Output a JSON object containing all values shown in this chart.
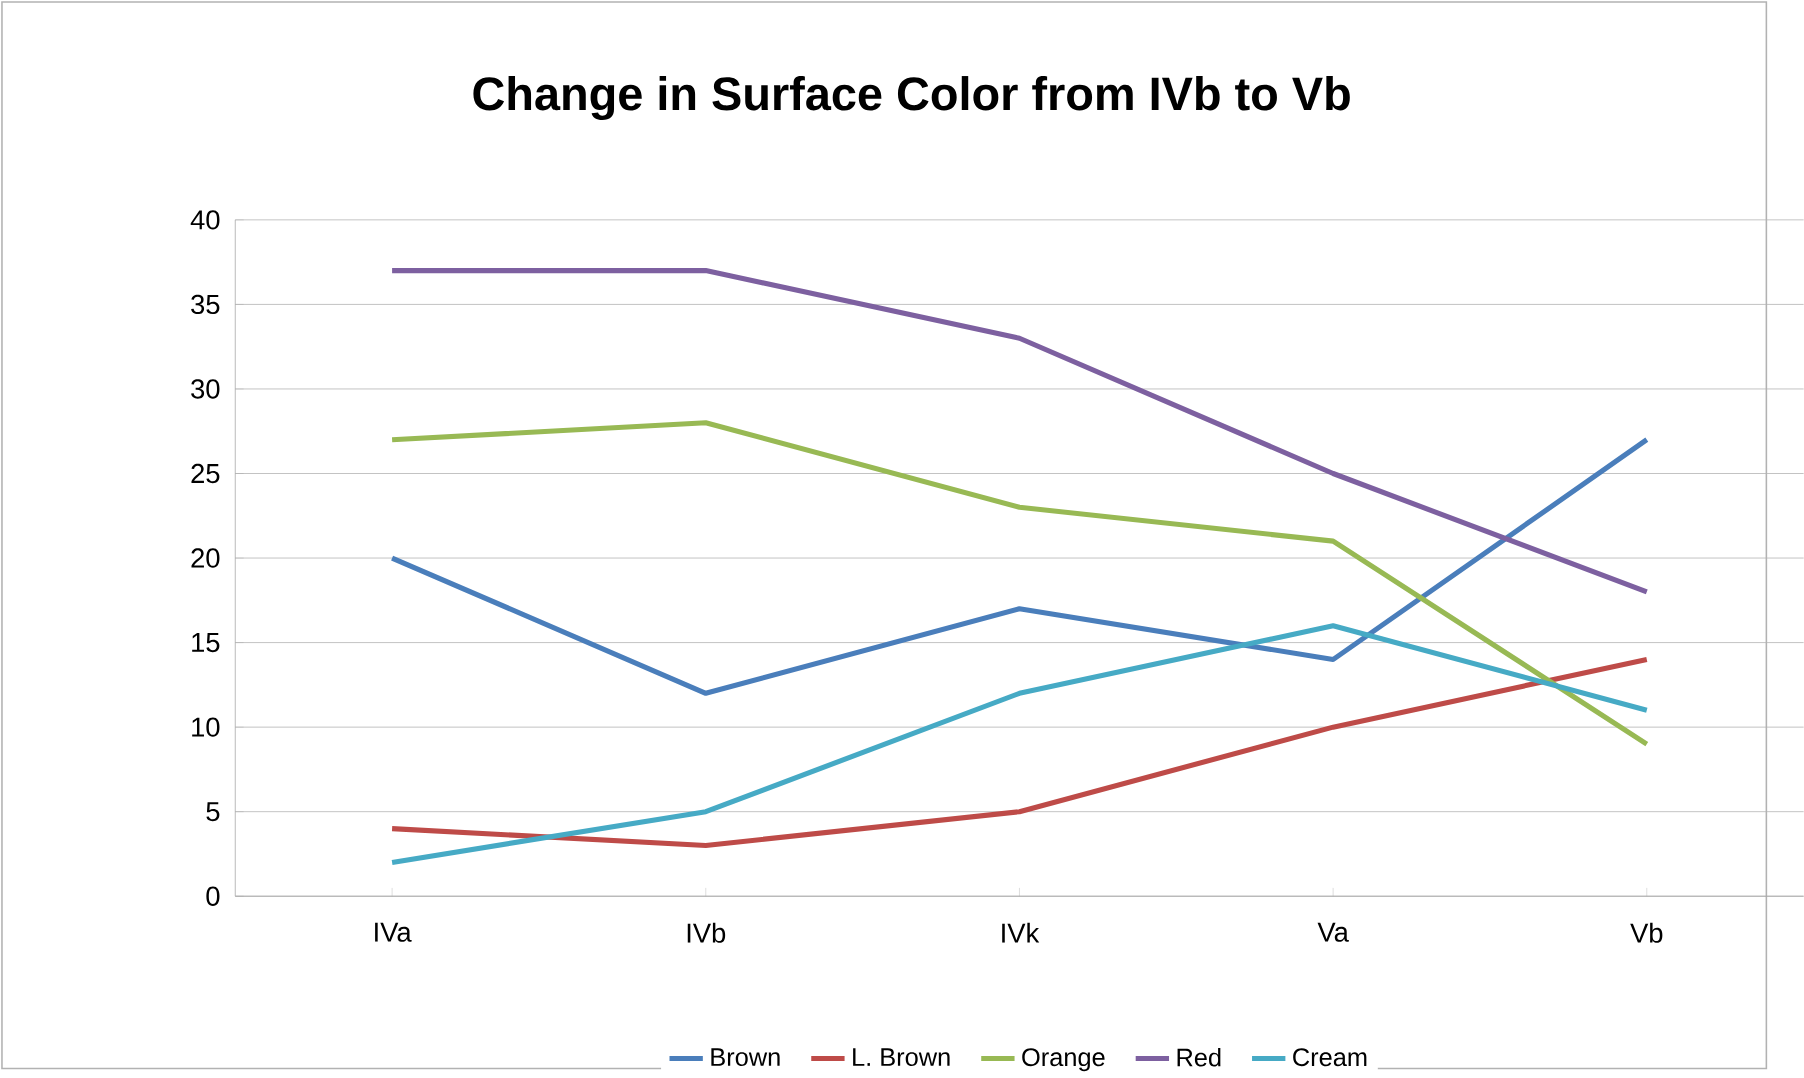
{
  "chart_data": {
    "type": "line",
    "title": "Change in Surface Color from IVb to Vb",
    "categories": [
      "IVa",
      "IVb",
      "IVk",
      "Va",
      "Vb"
    ],
    "series": [
      {
        "name": "Brown",
        "color": "#4a7ebb",
        "values": [
          20,
          12,
          17,
          14,
          27
        ]
      },
      {
        "name": "L. Brown",
        "color": "#be4b48",
        "values": [
          4,
          3,
          5,
          10,
          14
        ]
      },
      {
        "name": "Orange",
        "color": "#98b954",
        "values": [
          27,
          28,
          23,
          21,
          9
        ]
      },
      {
        "name": "Red",
        "color": "#7d60a0",
        "values": [
          37,
          37,
          33,
          25,
          18
        ]
      },
      {
        "name": "Cream",
        "color": "#46aac5",
        "values": [
          2,
          5,
          12,
          16,
          11
        ]
      }
    ],
    "ylim": [
      0,
      40
    ],
    "yticks": [
      0,
      5,
      10,
      15,
      20,
      25,
      30,
      35,
      40
    ],
    "grid": "y",
    "legend": "bottom",
    "marker": "none",
    "line_style": "solid"
  }
}
